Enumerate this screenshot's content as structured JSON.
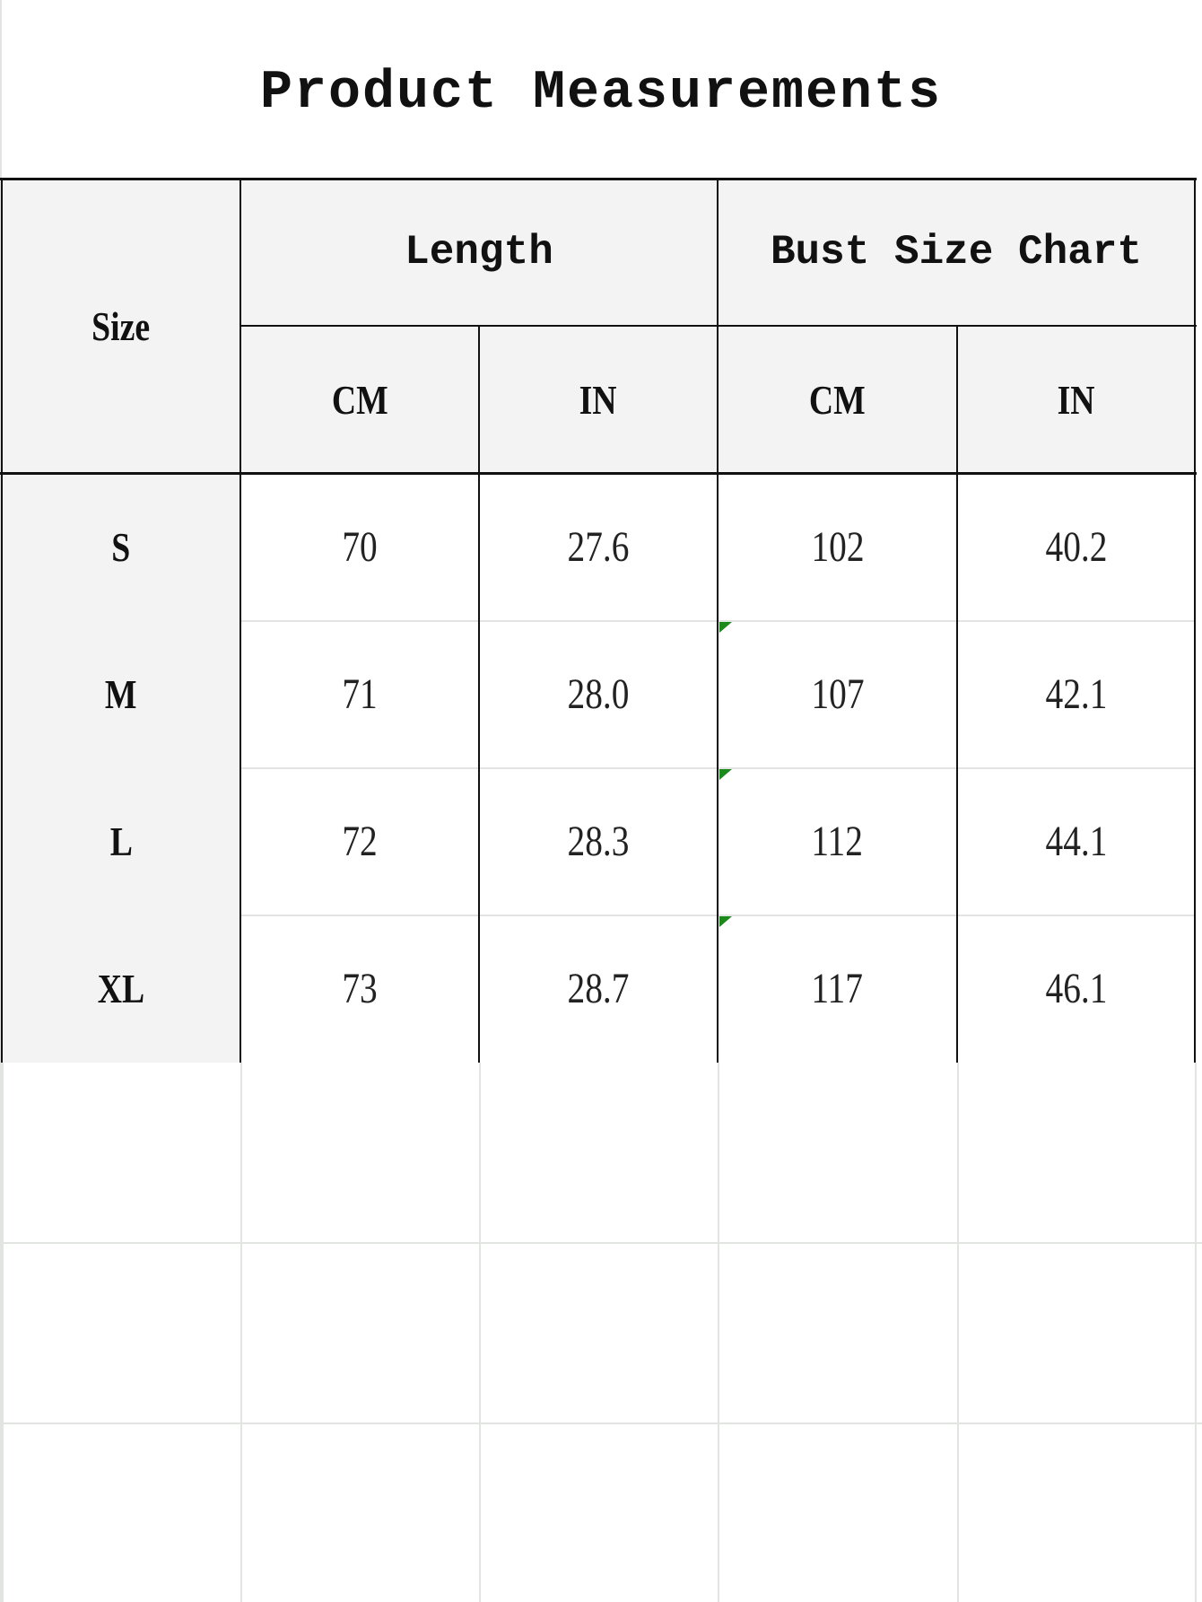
{
  "title": "Product Measurements",
  "headers": {
    "size": "Size",
    "length": "Length",
    "bust": "Bust Size Chart",
    "units": [
      "CM",
      "IN",
      "CM",
      "IN"
    ]
  },
  "rows": [
    {
      "size": "S",
      "values": [
        "70",
        "27.6",
        "102",
        "40.2"
      ]
    },
    {
      "size": "M",
      "values": [
        "71",
        "28.0",
        "107",
        "42.1"
      ]
    },
    {
      "size": "L",
      "values": [
        "72",
        "28.3",
        "112",
        "44.1"
      ]
    },
    {
      "size": "XL",
      "values": [
        "73",
        "28.7",
        "117",
        "46.1"
      ]
    }
  ],
  "colors": {
    "header_bg": "#f2f3f2",
    "border": "#111111",
    "comment_flag": "#1a8a1a"
  }
}
